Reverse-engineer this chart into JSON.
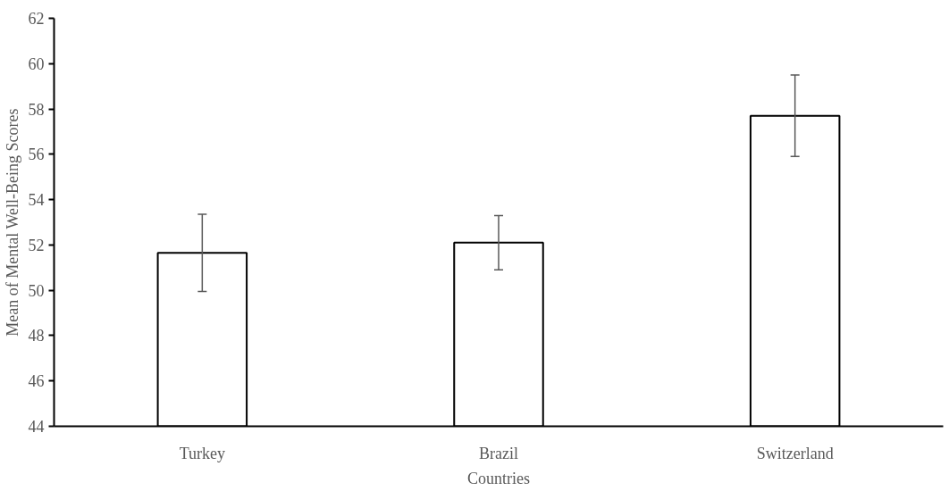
{
  "chart_data": {
    "type": "bar",
    "xlabel": "Countries",
    "ylabel": "Mean of Mental Well-Being Scores",
    "categories": [
      "Turkey",
      "Brazil",
      "Switzerland"
    ],
    "values": [
      51.65,
      52.1,
      57.7
    ],
    "errors": [
      1.7,
      1.2,
      1.8
    ],
    "color": "#ffffff",
    "ylim": [
      44,
      62
    ],
    "yticks": [
      44,
      46,
      48,
      50,
      52,
      54,
      56,
      58,
      60,
      62
    ],
    "grid": false
  }
}
